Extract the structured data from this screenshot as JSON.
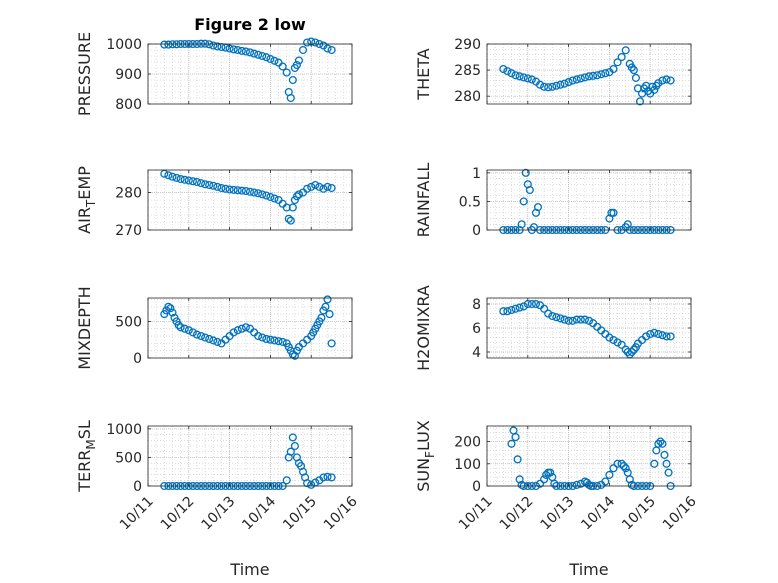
{
  "chart_data": [
    {
      "type": "scatter",
      "panel": "pressure",
      "title": "Figure 2 low",
      "ylabel": "PRESSURE",
      "ylabel_sub": "",
      "ylabel_tail": "",
      "xlabel": "",
      "ylim": [
        800,
        1000
      ],
      "yticks": [
        800,
        900,
        1000
      ],
      "xlim": [
        11,
        16
      ],
      "marker_color": "#0072BD",
      "x": [
        11.4,
        11.5,
        11.6,
        11.7,
        11.8,
        11.9,
        12.0,
        12.1,
        12.2,
        12.3,
        12.4,
        12.5,
        12.6,
        12.7,
        12.8,
        12.9,
        13.0,
        13.1,
        13.2,
        13.3,
        13.4,
        13.5,
        13.6,
        13.7,
        13.8,
        13.9,
        14.0,
        14.1,
        14.2,
        14.3,
        14.4,
        14.45,
        14.5,
        14.55,
        14.6,
        14.65,
        14.7,
        14.8,
        14.9,
        15.0,
        15.1,
        15.2,
        15.3,
        15.4,
        15.5
      ],
      "y": [
        998,
        998,
        999,
        999,
        1000,
        1000,
        1000,
        1000,
        1000,
        1001,
        1001,
        999,
        995,
        992,
        990,
        988,
        985,
        982,
        980,
        977,
        975,
        972,
        968,
        964,
        960,
        956,
        950,
        944,
        938,
        925,
        905,
        840,
        820,
        880,
        920,
        930,
        945,
        980,
        1005,
        1008,
        1005,
        1000,
        995,
        985,
        980
      ]
    },
    {
      "type": "scatter",
      "panel": "theta",
      "title": "",
      "ylabel": "THETA",
      "ylabel_sub": "",
      "ylabel_tail": "",
      "xlabel": "",
      "ylim": [
        278.5,
        290
      ],
      "yticks": [
        280,
        285,
        290
      ],
      "xlim": [
        11,
        16
      ],
      "marker_color": "#0072BD",
      "x": [
        11.4,
        11.5,
        11.6,
        11.7,
        11.8,
        11.9,
        12.0,
        12.1,
        12.2,
        12.3,
        12.4,
        12.5,
        12.6,
        12.7,
        12.8,
        12.9,
        13.0,
        13.1,
        13.2,
        13.3,
        13.4,
        13.5,
        13.6,
        13.7,
        13.8,
        13.9,
        14.0,
        14.1,
        14.2,
        14.3,
        14.4,
        14.5,
        14.55,
        14.6,
        14.65,
        14.7,
        14.75,
        14.8,
        14.85,
        14.9,
        14.95,
        15.0,
        15.05,
        15.1,
        15.15,
        15.2,
        15.3,
        15.4,
        15.5
      ],
      "y": [
        285.2,
        284.8,
        284.4,
        284.0,
        283.8,
        283.6,
        283.4,
        283.2,
        282.8,
        282.2,
        281.8,
        281.7,
        281.8,
        282.0,
        282.2,
        282.4,
        282.7,
        283.0,
        283.2,
        283.4,
        283.6,
        283.8,
        283.9,
        284.0,
        284.2,
        284.4,
        284.6,
        285.2,
        286.5,
        287.5,
        288.8,
        286.2,
        285.5,
        285.0,
        283.5,
        281.5,
        279.0,
        280.5,
        281.5,
        282.0,
        281.0,
        280.5,
        281.8,
        281.2,
        282.0,
        282.5,
        283.0,
        283.2,
        283.0
      ]
    },
    {
      "type": "scatter",
      "panel": "air_temp",
      "title": "",
      "ylabel": "AIR",
      "ylabel_sub": "T",
      "ylabel_tail": "EMP",
      "xlabel": "",
      "ylim": [
        270,
        286
      ],
      "yticks": [
        270,
        280
      ],
      "xlim": [
        11,
        16
      ],
      "marker_color": "#0072BD",
      "x": [
        11.4,
        11.5,
        11.6,
        11.7,
        11.8,
        11.9,
        12.0,
        12.1,
        12.2,
        12.3,
        12.4,
        12.5,
        12.6,
        12.7,
        12.8,
        12.9,
        13.0,
        13.1,
        13.2,
        13.3,
        13.4,
        13.5,
        13.6,
        13.7,
        13.8,
        13.9,
        14.0,
        14.1,
        14.2,
        14.3,
        14.4,
        14.45,
        14.5,
        14.55,
        14.6,
        14.65,
        14.7,
        14.8,
        14.9,
        15.0,
        15.1,
        15.2,
        15.3,
        15.4,
        15.5
      ],
      "y": [
        285.0,
        284.6,
        284.2,
        283.9,
        283.6,
        283.4,
        283.2,
        283.0,
        282.8,
        282.5,
        282.2,
        282.0,
        281.8,
        281.5,
        281.2,
        281.0,
        280.8,
        280.7,
        280.6,
        280.5,
        280.4,
        280.2,
        280.0,
        279.8,
        279.5,
        279.2,
        278.8,
        278.4,
        278.0,
        277.0,
        276.0,
        273.0,
        272.5,
        276.0,
        278.0,
        279.0,
        279.5,
        280.0,
        281.0,
        281.5,
        282.0,
        281.5,
        281.0,
        281.5,
        281.2
      ]
    },
    {
      "type": "scatter",
      "panel": "rainfall",
      "title": "",
      "ylabel": "RAINFALL",
      "ylabel_sub": "",
      "ylabel_tail": "",
      "xlabel": "",
      "ylim": [
        0,
        1.05
      ],
      "yticks": [
        0,
        0.5,
        1
      ],
      "ytick_labels": [
        "0",
        "0.5",
        "1"
      ],
      "xlim": [
        11,
        16
      ],
      "marker_color": "#0072BD",
      "x": [
        11.4,
        11.5,
        11.6,
        11.7,
        11.8,
        11.85,
        11.9,
        11.95,
        12.0,
        12.05,
        12.1,
        12.15,
        12.2,
        12.25,
        12.3,
        12.4,
        12.5,
        12.6,
        12.7,
        12.8,
        12.9,
        13.0,
        13.1,
        13.2,
        13.3,
        13.4,
        13.5,
        13.6,
        13.7,
        13.8,
        13.9,
        14.0,
        14.05,
        14.1,
        14.2,
        14.3,
        14.4,
        14.45,
        14.5,
        14.6,
        14.7,
        14.8,
        14.9,
        15.0,
        15.1,
        15.2,
        15.3,
        15.4,
        15.5
      ],
      "y": [
        0,
        0,
        0,
        0,
        0,
        0.1,
        0.5,
        1.0,
        0.8,
        0.7,
        0,
        0.05,
        0.3,
        0.4,
        0,
        0,
        0,
        0,
        0,
        0,
        0,
        0,
        0,
        0,
        0,
        0,
        0,
        0,
        0,
        0,
        0,
        0.2,
        0.3,
        0.3,
        0,
        0,
        0.05,
        0.1,
        0,
        0,
        0,
        0,
        0,
        0,
        0,
        0,
        0,
        0,
        0
      ]
    },
    {
      "type": "scatter",
      "panel": "mixdepth",
      "title": "",
      "ylabel": "MIXDEPTH",
      "ylabel_sub": "",
      "ylabel_tail": "",
      "xlabel": "",
      "ylim": [
        0,
        820
      ],
      "yticks": [
        0,
        500
      ],
      "xlim": [
        11,
        16
      ],
      "marker_color": "#0072BD",
      "x": [
        11.4,
        11.45,
        11.5,
        11.55,
        11.6,
        11.65,
        11.7,
        11.75,
        11.8,
        11.9,
        12.0,
        12.1,
        12.2,
        12.3,
        12.4,
        12.5,
        12.6,
        12.7,
        12.8,
        12.9,
        13.0,
        13.1,
        13.2,
        13.3,
        13.4,
        13.5,
        13.6,
        13.7,
        13.8,
        13.9,
        14.0,
        14.1,
        14.2,
        14.3,
        14.4,
        14.45,
        14.5,
        14.55,
        14.6,
        14.65,
        14.7,
        14.8,
        14.9,
        15.0,
        15.05,
        15.1,
        15.15,
        15.2,
        15.25,
        15.3,
        15.35,
        15.4,
        15.45,
        15.5
      ],
      "y": [
        600,
        650,
        700,
        680,
        620,
        550,
        500,
        450,
        420,
        400,
        380,
        350,
        320,
        300,
        280,
        260,
        240,
        220,
        200,
        250,
        300,
        350,
        380,
        400,
        420,
        400,
        350,
        300,
        280,
        260,
        250,
        240,
        230,
        220,
        200,
        150,
        100,
        50,
        30,
        100,
        150,
        200,
        250,
        300,
        350,
        400,
        450,
        500,
        550,
        650,
        700,
        800,
        600,
        200
      ]
    },
    {
      "type": "scatter",
      "panel": "h2omixra",
      "title": "",
      "ylabel": "H2OMIXRA",
      "ylabel_sub": "",
      "ylabel_tail": "",
      "xlabel": "",
      "ylim": [
        3.5,
        8.5
      ],
      "yticks": [
        4,
        6,
        8
      ],
      "xlim": [
        11,
        16
      ],
      "marker_color": "#0072BD",
      "x": [
        11.4,
        11.5,
        11.6,
        11.7,
        11.8,
        11.9,
        12.0,
        12.1,
        12.2,
        12.3,
        12.4,
        12.5,
        12.6,
        12.7,
        12.8,
        12.9,
        13.0,
        13.1,
        13.2,
        13.3,
        13.4,
        13.5,
        13.6,
        13.7,
        13.8,
        13.9,
        14.0,
        14.1,
        14.2,
        14.3,
        14.4,
        14.45,
        14.5,
        14.55,
        14.6,
        14.65,
        14.7,
        14.8,
        14.9,
        15.0,
        15.1,
        15.2,
        15.3,
        15.4,
        15.5
      ],
      "y": [
        7.4,
        7.4,
        7.5,
        7.6,
        7.7,
        7.8,
        8.0,
        8.0,
        8.0,
        7.9,
        7.6,
        7.2,
        7.0,
        6.9,
        6.8,
        6.7,
        6.6,
        6.6,
        6.7,
        6.7,
        6.7,
        6.6,
        6.4,
        6.1,
        5.8,
        5.5,
        5.2,
        5.0,
        4.8,
        4.6,
        4.2,
        4.0,
        3.8,
        4.0,
        4.2,
        4.4,
        4.7,
        5.0,
        5.3,
        5.5,
        5.6,
        5.5,
        5.4,
        5.3,
        5.3
      ]
    },
    {
      "type": "scatter",
      "panel": "terr_msl",
      "title": "",
      "ylabel": "TERR",
      "ylabel_sub": "M",
      "ylabel_tail": "SL",
      "xlabel": "Time",
      "ylim": [
        0,
        1050
      ],
      "yticks": [
        0,
        500,
        1000
      ],
      "xlim": [
        11,
        16
      ],
      "xticks": [
        11,
        12,
        13,
        14,
        15,
        16
      ],
      "xtick_labels": [
        "10/11",
        "10/12",
        "10/13",
        "10/14",
        "10/15",
        "10/16"
      ],
      "marker_color": "#0072BD",
      "x": [
        11.4,
        11.5,
        11.6,
        11.7,
        11.8,
        11.9,
        12.0,
        12.1,
        12.2,
        12.3,
        12.4,
        12.5,
        12.6,
        12.7,
        12.8,
        12.9,
        13.0,
        13.1,
        13.2,
        13.3,
        13.4,
        13.5,
        13.6,
        13.7,
        13.8,
        13.9,
        14.0,
        14.1,
        14.2,
        14.3,
        14.4,
        14.45,
        14.5,
        14.55,
        14.6,
        14.65,
        14.7,
        14.75,
        14.8,
        14.85,
        14.9,
        15.0,
        15.1,
        15.2,
        15.3,
        15.4,
        15.5
      ],
      "y": [
        0,
        0,
        0,
        0,
        0,
        0,
        0,
        0,
        0,
        0,
        0,
        0,
        0,
        0,
        0,
        0,
        0,
        0,
        0,
        0,
        0,
        0,
        0,
        0,
        0,
        0,
        0,
        0,
        0,
        0,
        100,
        500,
        600,
        850,
        700,
        500,
        400,
        350,
        250,
        150,
        50,
        20,
        60,
        100,
        150,
        160,
        150
      ]
    },
    {
      "type": "scatter",
      "panel": "sun_flux",
      "title": "",
      "ylabel": "SUN",
      "ylabel_sub": "F",
      "ylabel_tail": "LUX",
      "xlabel": "Time",
      "ylim": [
        0,
        270
      ],
      "yticks": [
        0,
        100,
        200
      ],
      "xlim": [
        11,
        16
      ],
      "xticks": [
        11,
        12,
        13,
        14,
        15,
        16
      ],
      "xtick_labels": [
        "10/11",
        "10/12",
        "10/13",
        "10/14",
        "10/15",
        "10/16"
      ],
      "marker_color": "#0072BD",
      "x": [
        11.6,
        11.65,
        11.7,
        11.75,
        11.8,
        11.85,
        11.9,
        12.0,
        12.1,
        12.2,
        12.3,
        12.4,
        12.45,
        12.5,
        12.55,
        12.6,
        12.65,
        12.7,
        12.8,
        12.9,
        13.0,
        13.1,
        13.2,
        13.3,
        13.4,
        13.45,
        13.5,
        13.55,
        13.6,
        13.7,
        13.8,
        13.9,
        14.0,
        14.1,
        14.2,
        14.3,
        14.35,
        14.4,
        14.45,
        14.5,
        14.55,
        14.6,
        14.7,
        14.8,
        14.9,
        15.0,
        15.1,
        15.15,
        15.2,
        15.25,
        15.3,
        15.35,
        15.4,
        15.45,
        15.5
      ],
      "y": [
        190,
        250,
        220,
        120,
        30,
        5,
        0,
        0,
        0,
        0,
        10,
        30,
        50,
        60,
        60,
        40,
        10,
        0,
        0,
        0,
        0,
        0,
        5,
        10,
        20,
        15,
        5,
        0,
        0,
        0,
        5,
        20,
        50,
        80,
        100,
        100,
        90,
        80,
        60,
        30,
        5,
        0,
        0,
        0,
        0,
        0,
        100,
        160,
        190,
        200,
        190,
        140,
        100,
        60,
        0
      ]
    }
  ]
}
